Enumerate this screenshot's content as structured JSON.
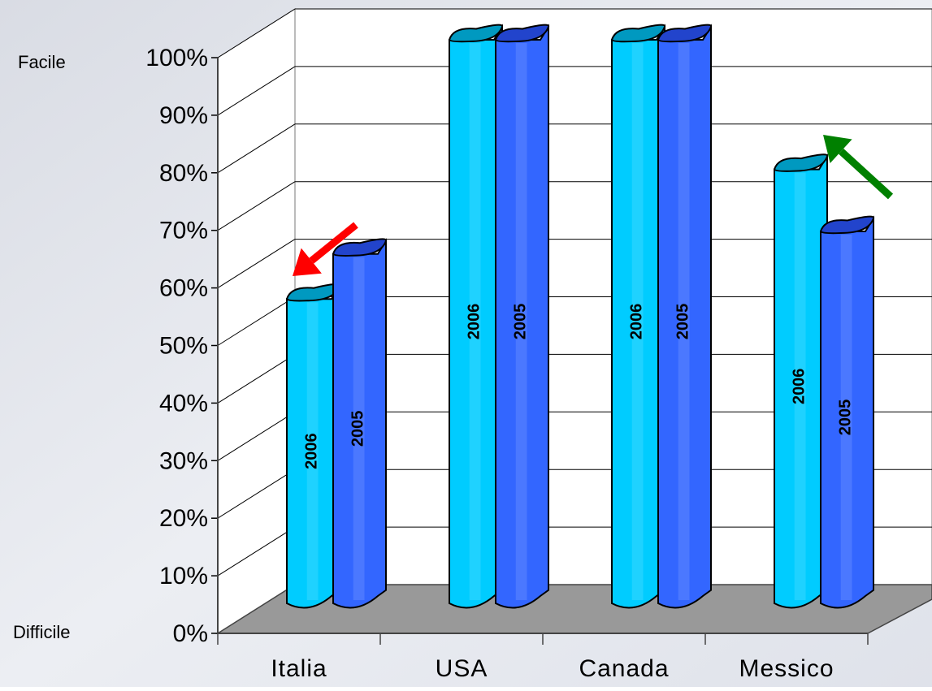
{
  "chart_data": {
    "type": "bar",
    "categories": [
      "Italia",
      "USA",
      "Canada",
      "Messico"
    ],
    "series": [
      {
        "name": "2006",
        "values": [
          54,
          100,
          100,
          77
        ]
      },
      {
        "name": "2005",
        "values": [
          62,
          100,
          100,
          66
        ]
      }
    ],
    "bar_labels": [
      "2006",
      "2005"
    ],
    "y_ticks": [
      "0%",
      "10%",
      "20%",
      "30%",
      "40%",
      "50%",
      "60%",
      "70%",
      "80%",
      "90%",
      "100%"
    ],
    "ylim": [
      0,
      100
    ],
    "grid": true,
    "y_top_label": "Facile",
    "y_bottom_label": "Difficile",
    "trend_arrows": [
      {
        "category": "Italia",
        "direction": "down",
        "color": "#ff0000"
      },
      {
        "category": "Messico",
        "direction": "up",
        "color": "#008000"
      }
    ],
    "colors": {
      "series_2006": "#00ccff",
      "series_2006_top": "#0099c0",
      "series_2005": "#3366ff",
      "series_2005_top": "#2244cc",
      "floor": "#999999",
      "wall": "#ffffff"
    }
  }
}
